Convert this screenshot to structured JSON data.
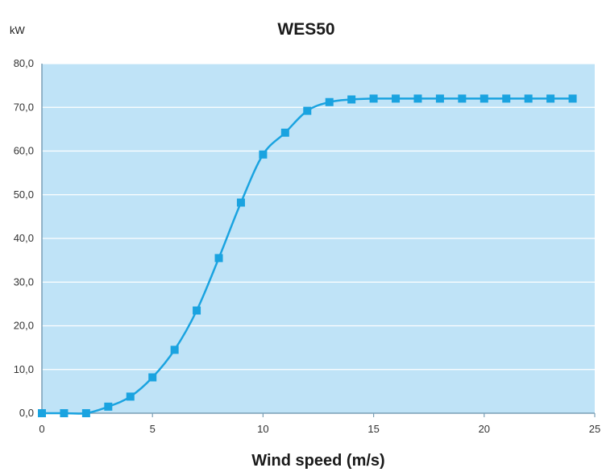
{
  "chart_data": {
    "type": "line",
    "title": "WES50",
    "ylabel": "kW",
    "xlabel": "Wind speed (m/s)",
    "xlim": [
      0,
      25
    ],
    "ylim": [
      0,
      80
    ],
    "x_ticks": [
      "0",
      "5",
      "10",
      "15",
      "20",
      "25"
    ],
    "y_ticks": [
      "0,0",
      "10,0",
      "20,0",
      "30,0",
      "40,0",
      "50,0",
      "60,0",
      "70,0",
      "80,0"
    ],
    "x_tick_values": [
      0,
      5,
      10,
      15,
      20,
      25
    ],
    "y_tick_values": [
      0,
      10,
      20,
      30,
      40,
      50,
      60,
      70,
      80
    ],
    "grid": "horizontal",
    "x": [
      0,
      1,
      2,
      3,
      4,
      5,
      6,
      7,
      8,
      9,
      10,
      11,
      12,
      13,
      14,
      15,
      16,
      17,
      18,
      19,
      20,
      21,
      22,
      23,
      24
    ],
    "series": [
      {
        "values": [
          0,
          0,
          0,
          1.5,
          3.8,
          8.2,
          14.5,
          23.5,
          35.5,
          48.2,
          59.2,
          64.2,
          69.2,
          71.2,
          71.8,
          72,
          72,
          72,
          72,
          72,
          72,
          72,
          72,
          72,
          72
        ],
        "color": "#1aa3e0",
        "marker": "square"
      }
    ],
    "colors": {
      "plot_background": "#bfe3f7",
      "gridline": "#ffffff",
      "axis": "#7a9fb5",
      "series": "#1aa3e0"
    }
  }
}
